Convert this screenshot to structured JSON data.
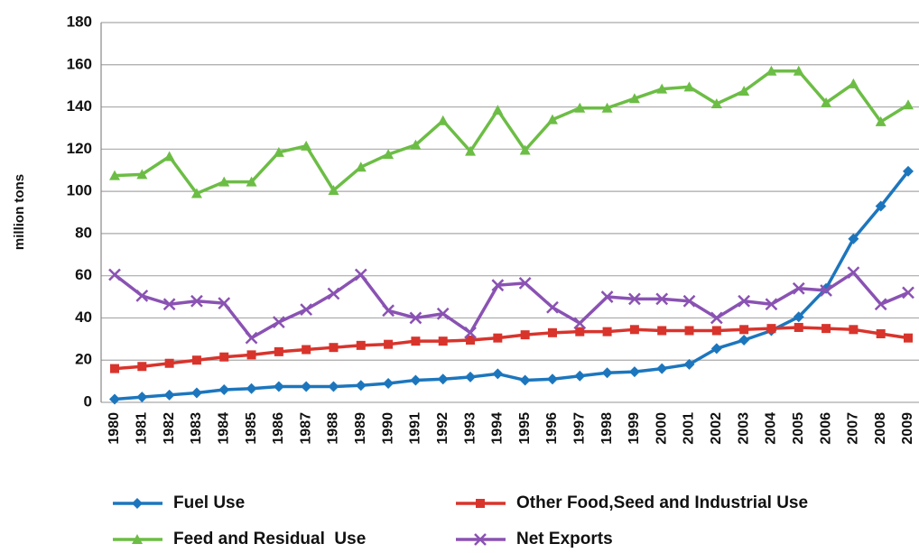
{
  "chart_data": {
    "type": "line",
    "y_label": "million tons",
    "categories": [
      "1980",
      "1981",
      "1982",
      "1983",
      "1984",
      "1985",
      "1986",
      "1987",
      "1988",
      "1989",
      "1990",
      "1991",
      "1992",
      "1993",
      "1994",
      "1995",
      "1996",
      "1997",
      "1998",
      "1999",
      "2000",
      "2001",
      "2002",
      "2003",
      "2004",
      "2005",
      "2006",
      "2007",
      "2008",
      "2009"
    ],
    "series": [
      {
        "name": "Fuel Use",
        "color": "#1c76bd",
        "marker": "diamond",
        "values": [
          1.5,
          2.5,
          3.5,
          4.5,
          6,
          6.5,
          7.5,
          7.5,
          7.5,
          8,
          9,
          10.5,
          11,
          12,
          13.5,
          10.5,
          11,
          12.5,
          14,
          14.5,
          16,
          18,
          25.5,
          29.5,
          34,
          40.5,
          54,
          77.5,
          93,
          109.5
        ]
      },
      {
        "name": "Other Food,Seed and Industrial Use",
        "color": "#d8342c",
        "marker": "square",
        "values": [
          16,
          17,
          18.5,
          20,
          21.5,
          22.5,
          24,
          25,
          26,
          27,
          27.5,
          29,
          29,
          29.5,
          30.5,
          32,
          33,
          33.5,
          33.5,
          34.5,
          34,
          34,
          34,
          34.5,
          35,
          35.5,
          35,
          34.5,
          32.5,
          30.5
        ]
      },
      {
        "name": "Feed and Residual  Use",
        "color": "#6cbd45",
        "marker": "triangle",
        "values": [
          107.5,
          108,
          116.5,
          99,
          104.5,
          104.5,
          118.5,
          121.5,
          100.5,
          111.5,
          117.5,
          122,
          133.5,
          119,
          138.5,
          119.5,
          134,
          139.5,
          139.5,
          144,
          148.5,
          149.5,
          141.5,
          147.5,
          157,
          157,
          142,
          151,
          133,
          141
        ]
      },
      {
        "name": "Net Exports",
        "color": "#8a52b3",
        "marker": "x",
        "values": [
          60.5,
          50.5,
          46.5,
          48,
          47,
          30.5,
          38,
          44,
          51.5,
          60.5,
          43.5,
          40,
          42,
          33,
          55.5,
          56.5,
          45,
          37.5,
          50,
          49,
          49,
          48,
          40,
          48,
          46.5,
          54,
          53,
          61.5,
          46.5,
          52
        ]
      }
    ],
    "ylim": [
      0,
      180
    ],
    "yticks": [
      0,
      20,
      40,
      60,
      80,
      100,
      120,
      140,
      160,
      180
    ],
    "grid": true
  }
}
